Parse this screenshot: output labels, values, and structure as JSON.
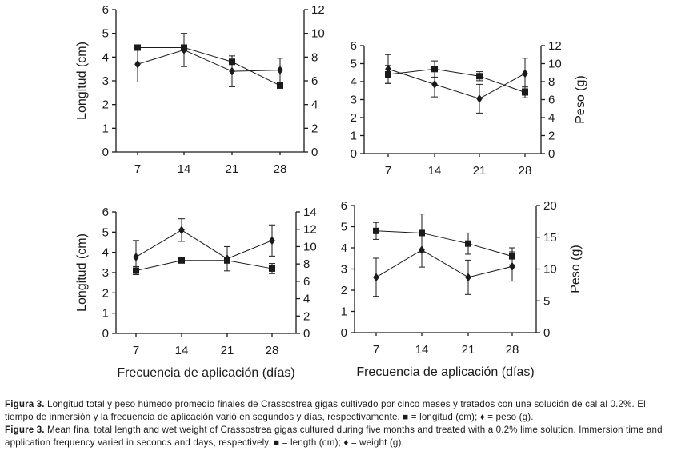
{
  "figure": {
    "xlabel": "Frecuencia de aplicación (días)",
    "ylabel_left": "Longitud (cm)",
    "ylabel_right": "Peso (g)"
  },
  "chart_data": [
    {
      "type": "line",
      "position": "top-left",
      "categories": [
        "7",
        "14",
        "21",
        "28"
      ],
      "ylabel": "Longitud (cm)",
      "ylim": [
        0,
        6
      ],
      "yticks": [
        0,
        1,
        2,
        3,
        4,
        5,
        6
      ],
      "y2label": "",
      "y2lim": [
        0,
        12
      ],
      "y2ticks": [
        0,
        2,
        4,
        6,
        8,
        10,
        12
      ],
      "xlabel": "",
      "series": [
        {
          "name": "longitud (cm)",
          "marker": "square",
          "axis": "left",
          "values": [
            4.4,
            4.4,
            3.8,
            2.8
          ],
          "err": [
            0,
            0,
            0,
            0
          ]
        },
        {
          "name": "peso (g)",
          "marker": "diamond",
          "axis": "right",
          "values": [
            7.4,
            8.6,
            6.8,
            6.9
          ],
          "err": [
            1.5,
            1.4,
            1.3,
            1.0
          ]
        }
      ]
    },
    {
      "type": "line",
      "position": "top-right",
      "categories": [
        "7",
        "14",
        "21",
        "28"
      ],
      "ylabel": "",
      "ylim": [
        0,
        6
      ],
      "yticks": [
        0,
        1,
        2,
        3,
        4,
        5,
        6
      ],
      "y2label": "Peso (g)",
      "y2lim": [
        0,
        12
      ],
      "y2ticks": [
        0,
        2,
        4,
        6,
        8,
        10,
        12
      ],
      "xlabel": "",
      "series": [
        {
          "name": "longitud (cm)",
          "marker": "square",
          "axis": "left",
          "values": [
            4.4,
            4.7,
            4.3,
            3.4
          ],
          "err": [
            0.5,
            0.45,
            0.25,
            0.3
          ]
        },
        {
          "name": "peso (g)",
          "marker": "diamond",
          "axis": "right",
          "values": [
            9.4,
            7.7,
            6.1,
            8.9
          ],
          "err": [
            1.6,
            1.4,
            1.6,
            1.7
          ]
        }
      ]
    },
    {
      "type": "line",
      "position": "bottom-left",
      "categories": [
        "7",
        "14",
        "21",
        "28"
      ],
      "ylabel": "Longitud (cm)",
      "ylim": [
        0,
        6
      ],
      "yticks": [
        0,
        1,
        2,
        3,
        4,
        5,
        6
      ],
      "y2label": "",
      "y2lim": [
        0,
        14
      ],
      "y2ticks": [
        0,
        2,
        4,
        6,
        8,
        10,
        12,
        14
      ],
      "xlabel": "Frecuencia de aplicación (días)",
      "series": [
        {
          "name": "longitud (cm)",
          "marker": "square",
          "axis": "left",
          "values": [
            3.1,
            3.6,
            3.6,
            3.2
          ],
          "err": [
            0.2,
            0,
            0,
            0.25
          ]
        },
        {
          "name": "peso (g)",
          "marker": "diamond",
          "axis": "right",
          "values": [
            8.8,
            11.9,
            8.6,
            10.7
          ],
          "err": [
            1.9,
            1.3,
            1.4,
            1.8
          ]
        }
      ]
    },
    {
      "type": "line",
      "position": "bottom-right",
      "categories": [
        "7",
        "14",
        "21",
        "28"
      ],
      "ylabel": "",
      "ylim": [
        0,
        6
      ],
      "yticks": [
        0,
        1,
        2,
        3,
        4,
        5,
        6
      ],
      "y2label": "Peso (g)",
      "y2lim": [
        0,
        20
      ],
      "y2ticks": [
        0,
        5,
        10,
        15,
        20
      ],
      "xlabel": "Frecuencia de aplicación (días)",
      "series": [
        {
          "name": "longitud (cm)",
          "marker": "square",
          "axis": "left",
          "values": [
            4.8,
            4.7,
            4.2,
            3.6
          ],
          "err": [
            0.4,
            0.9,
            0.5,
            0.4
          ]
        },
        {
          "name": "peso (g)",
          "marker": "diamond",
          "axis": "right",
          "values": [
            8.7,
            13.0,
            8.7,
            10.4
          ],
          "err": [
            3.0,
            2.7,
            2.7,
            2.3
          ]
        }
      ]
    }
  ],
  "caption": {
    "es_label": "Figura 3.",
    "es_text": "Longitud total y peso húmedo promedio finales de Crassostrea gigas cultivado por cinco meses y tratados con una solución de cal al 0.2%. El tiempo de inmersión y la frecuencia de aplicación varió en segundos y días, respectivamente. ■ = longitud (cm); ♦ = peso (g).",
    "en_label": "Figure 3.",
    "en_text": "Mean final total length and wet weight of Crassostrea gigas cultured during five months and treated with a 0.2% lime solution. Immersion time and application frequency varied in seconds and days, respectively. ■ = length (cm); ♦ = weight (g)."
  }
}
